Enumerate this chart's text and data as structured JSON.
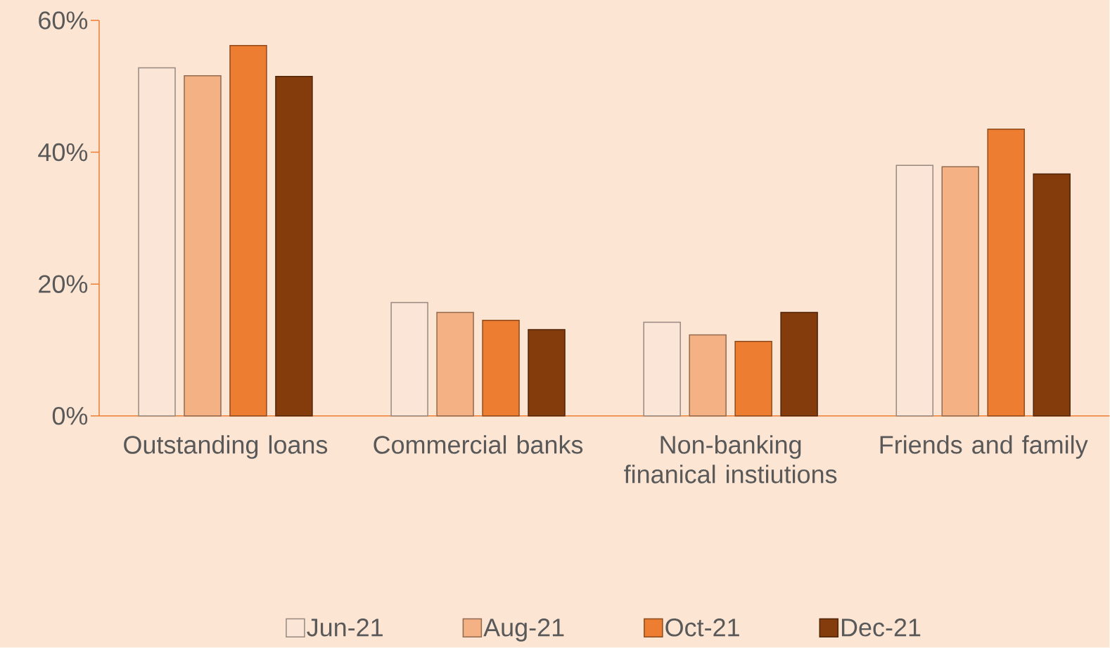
{
  "chart_data": {
    "type": "bar",
    "categories": [
      "Outstanding loans",
      "Commercial banks",
      "Non-banking finanical instiutions",
      "Friends and family"
    ],
    "series": [
      {
        "name": "Jun-21",
        "color": "#fbe5d6",
        "values": [
          52.8,
          17.2,
          14.2,
          38.0
        ]
      },
      {
        "name": "Aug-21",
        "color": "#f4b183",
        "values": [
          51.6,
          15.7,
          12.3,
          37.8
        ]
      },
      {
        "name": "Oct-21",
        "color": "#ed7d31",
        "values": [
          56.2,
          14.5,
          11.3,
          43.5
        ]
      },
      {
        "name": "Dec-21",
        "color": "#843c0c",
        "values": [
          51.5,
          13.1,
          15.7,
          36.7
        ]
      }
    ],
    "ylim": [
      0,
      60
    ],
    "yticks": [
      {
        "value": 0,
        "label": "0%"
      },
      {
        "value": 20,
        "label": "20%"
      },
      {
        "value": 40,
        "label": "40%"
      },
      {
        "value": 60,
        "label": "60%"
      }
    ],
    "grid": false,
    "legend": "bottom"
  }
}
